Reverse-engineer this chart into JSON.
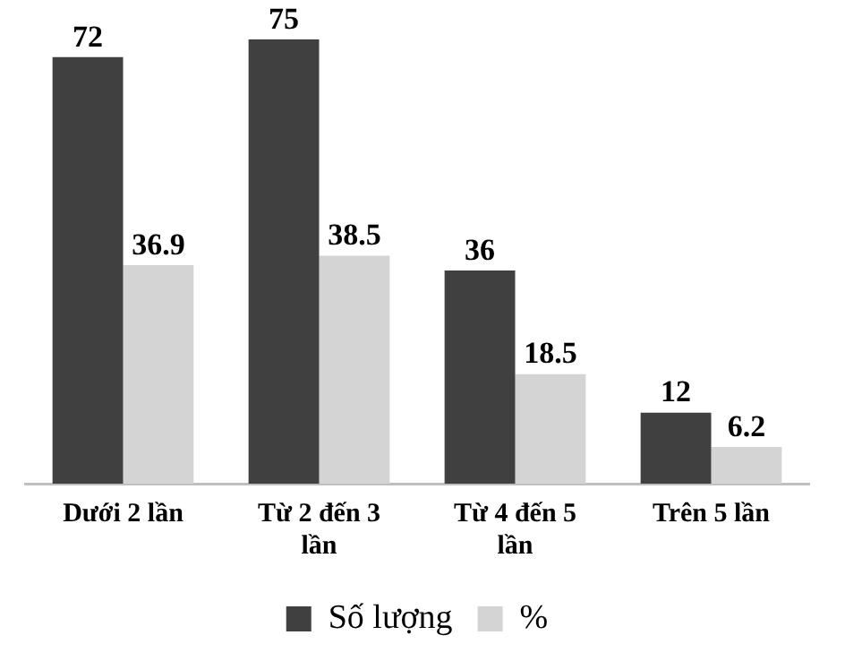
{
  "chart_data": {
    "type": "bar",
    "categories": [
      "Dưới 2 lần",
      "Từ 2 đến 3 lần",
      "Từ 4 đến 5 lần",
      "Trên 5 lần"
    ],
    "series": [
      {
        "name": "Số lượng",
        "color": "#404040",
        "values": [
          72,
          75,
          36,
          12
        ]
      },
      {
        "name": "%",
        "color": "#d4d4d4",
        "values": [
          36.9,
          38.5,
          18.5,
          6.2
        ]
      }
    ],
    "ylim": [
      0,
      75
    ],
    "tick_labels": "x",
    "data_labels": true,
    "legend": "bottom",
    "grid": false
  }
}
